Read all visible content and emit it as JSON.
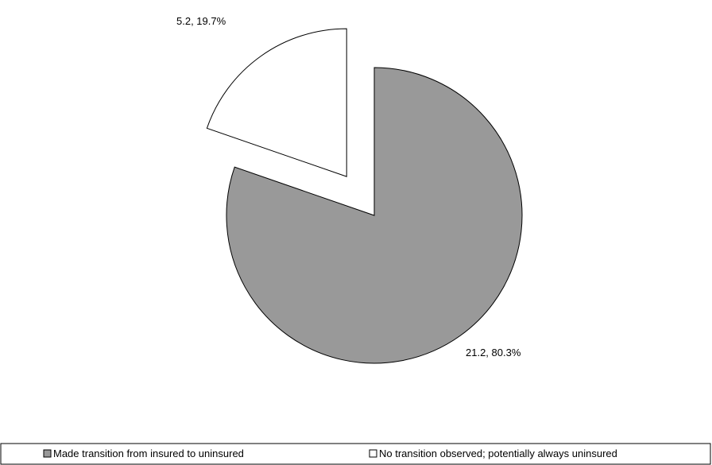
{
  "chart_data": {
    "type": "pie",
    "title": "",
    "start_angle_deg": 0,
    "direction": "clockwise",
    "exploded_index": 1,
    "legend_position": "bottom",
    "slices": [
      {
        "label": "Made transition from insured to uninsured",
        "value": 21.2,
        "percent": 80.3,
        "data_label": "21.2, 80.3%",
        "color": "#999999"
      },
      {
        "label": "No transition observed; potentially always uninsured",
        "value": 5.2,
        "percent": 19.7,
        "data_label": "5.2, 19.7%",
        "color": "#ffffff"
      }
    ]
  }
}
